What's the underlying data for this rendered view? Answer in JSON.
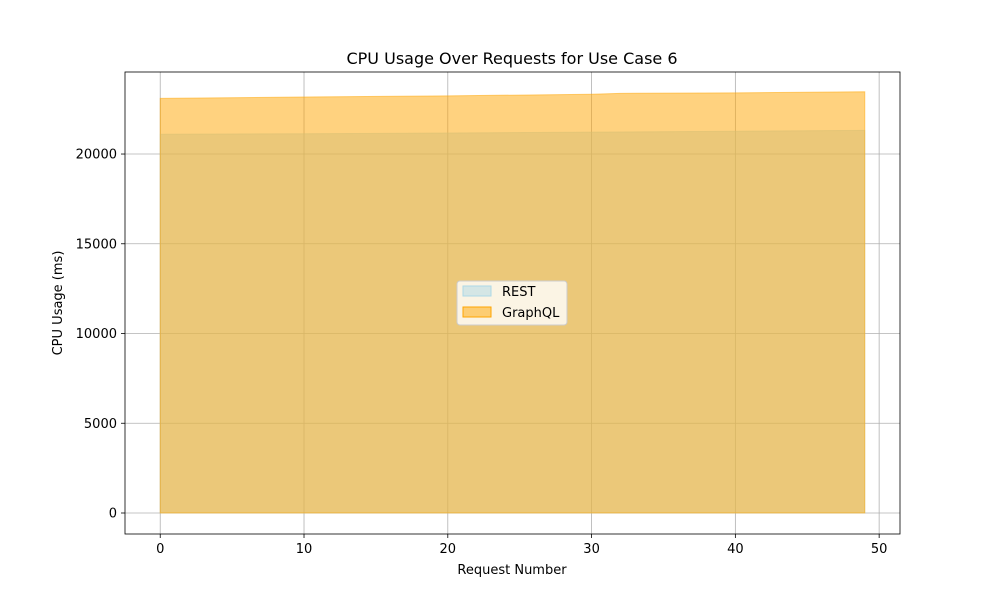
{
  "chart_data": {
    "type": "area",
    "title": "CPU Usage Over Requests for Use Case 6",
    "xlabel": "Request Number",
    "ylabel": "CPU Usage (ms)",
    "xlim": [
      -2.45,
      51.45
    ],
    "ylim": [
      -1170,
      24570
    ],
    "xticks": [
      0,
      10,
      20,
      30,
      40,
      50
    ],
    "yticks": [
      0,
      5000,
      10000,
      15000,
      20000
    ],
    "grid": true,
    "legend_position": "center",
    "series": [
      {
        "name": "REST",
        "color": "#add8e6",
        "x": [
          0,
          10,
          20,
          30,
          40,
          49
        ],
        "values": [
          21100,
          21130,
          21170,
          21220,
          21270,
          21320
        ]
      },
      {
        "name": "GraphQL",
        "color": "#ffa500",
        "x": [
          0,
          10,
          20,
          30,
          32,
          40,
          49
        ],
        "values": [
          23100,
          23180,
          23240,
          23330,
          23380,
          23410,
          23470
        ]
      }
    ]
  }
}
